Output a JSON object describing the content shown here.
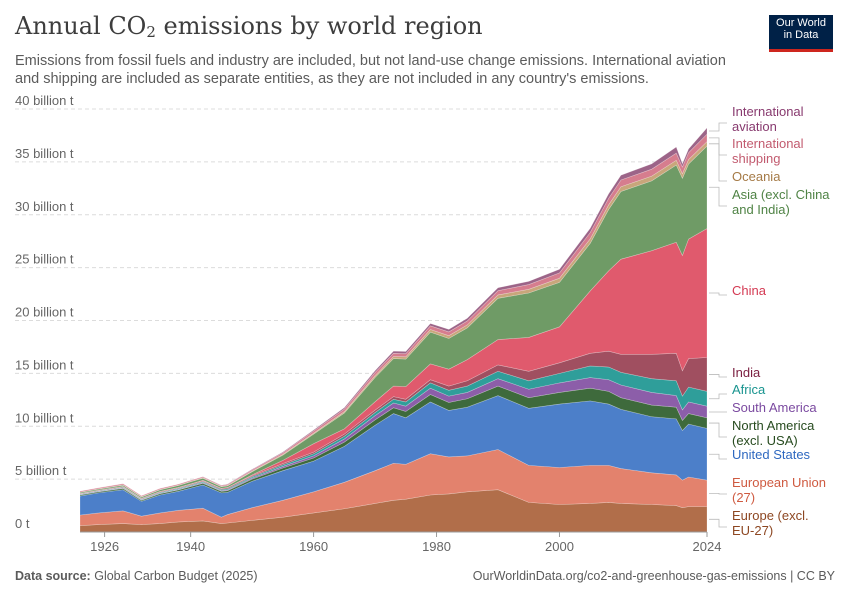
{
  "header": {
    "title_main": "Annual CO",
    "title_sub": "2",
    "title_rest": " emissions by world region",
    "subtitle": "Emissions from fossil fuels and industry are included, but not land-use change emissions. International aviation and shipping are included as separate entities, as they are not included in any country's emissions."
  },
  "logo": {
    "line1": "Our World",
    "line2": "in Data"
  },
  "footer": {
    "source_label": "Data source:",
    "source_value": "Global Carbon Budget (2025)",
    "url": "OurWorldinData.org/co2-and-greenhouse-gas-emissions | CC BY"
  },
  "chart_data": {
    "type": "area",
    "stacked": true,
    "unit": "billion t",
    "x": [
      1922,
      1925,
      1929,
      1932,
      1935,
      1938,
      1940,
      1942,
      1945,
      1946,
      1950,
      1955,
      1960,
      1965,
      1970,
      1973,
      1975,
      1979,
      1982,
      1985,
      1990,
      1995,
      2000,
      2005,
      2008,
      2010,
      2015,
      2019,
      2020,
      2021,
      2024
    ],
    "ylim": [
      0,
      40
    ],
    "y_ticks": [
      0,
      5,
      10,
      15,
      20,
      25,
      30,
      35,
      40
    ],
    "y_tick_labels": [
      "0 t",
      "5 billion t",
      "10 billion t",
      "15 billion t",
      "20 billion t",
      "25 billion t",
      "30 billion t",
      "35 billion t",
      "40 billion t"
    ],
    "x_ticks": [
      1926,
      1940,
      1960,
      1980,
      2000,
      2024
    ],
    "grid": "horizontal",
    "legend": "right-labels",
    "series": [
      {
        "name": "Europe (excl. EU-27)",
        "color": "#b16e4a",
        "values": [
          0.6,
          0.7,
          0.8,
          0.7,
          0.8,
          0.95,
          1.0,
          1.05,
          0.8,
          0.85,
          1.1,
          1.4,
          1.8,
          2.2,
          2.7,
          3.0,
          3.1,
          3.5,
          3.6,
          3.8,
          4.0,
          2.8,
          2.6,
          2.7,
          2.8,
          2.7,
          2.6,
          2.5,
          2.3,
          2.4,
          2.4
        ]
      },
      {
        "name": "European Union (27)",
        "color": "#e3826d",
        "values": [
          1.0,
          1.1,
          1.2,
          0.8,
          1.0,
          1.1,
          1.15,
          1.2,
          0.6,
          0.8,
          1.2,
          1.6,
          2.0,
          2.5,
          3.1,
          3.5,
          3.3,
          3.9,
          3.5,
          3.4,
          3.8,
          3.5,
          3.5,
          3.6,
          3.5,
          3.3,
          3.0,
          2.9,
          2.6,
          2.8,
          2.5
        ]
      },
      {
        "name": "United States",
        "color": "#4c7fc9",
        "values": [
          1.8,
          1.9,
          2.0,
          1.4,
          1.7,
          1.8,
          2.0,
          2.2,
          2.3,
          2.1,
          2.5,
          2.8,
          2.9,
          3.4,
          4.3,
          4.7,
          4.4,
          4.9,
          4.4,
          4.6,
          5.1,
          5.4,
          6.0,
          6.1,
          5.8,
          5.6,
          5.3,
          5.3,
          4.7,
          5.0,
          4.9
        ]
      },
      {
        "name": "North America (excl. USA)",
        "color": "#3e6a3c",
        "values": [
          0.1,
          0.1,
          0.12,
          0.1,
          0.12,
          0.13,
          0.14,
          0.15,
          0.15,
          0.15,
          0.2,
          0.25,
          0.3,
          0.4,
          0.5,
          0.55,
          0.6,
          0.7,
          0.75,
          0.8,
          0.9,
          1.0,
          1.1,
          1.2,
          1.2,
          1.1,
          1.1,
          1.1,
          0.95,
          1.0,
          1.0
        ]
      },
      {
        "name": "South America",
        "color": "#8c5ea9",
        "values": [
          0.03,
          0.04,
          0.05,
          0.05,
          0.05,
          0.06,
          0.06,
          0.07,
          0.07,
          0.08,
          0.1,
          0.15,
          0.2,
          0.3,
          0.4,
          0.45,
          0.5,
          0.6,
          0.6,
          0.6,
          0.7,
          0.8,
          0.9,
          1.0,
          1.1,
          1.2,
          1.2,
          1.1,
          1.0,
          1.1,
          1.1
        ]
      },
      {
        "name": "Africa",
        "color": "#2f9e9a",
        "values": [
          0.05,
          0.05,
          0.06,
          0.06,
          0.07,
          0.08,
          0.08,
          0.09,
          0.09,
          0.1,
          0.12,
          0.15,
          0.2,
          0.25,
          0.3,
          0.35,
          0.4,
          0.5,
          0.55,
          0.6,
          0.7,
          0.8,
          0.9,
          1.1,
          1.2,
          1.2,
          1.3,
          1.4,
          1.3,
          1.4,
          1.4
        ]
      },
      {
        "name": "India",
        "color": "#a04f60",
        "values": [
          0.05,
          0.05,
          0.06,
          0.06,
          0.07,
          0.07,
          0.08,
          0.08,
          0.09,
          0.1,
          0.1,
          0.12,
          0.15,
          0.2,
          0.22,
          0.25,
          0.25,
          0.3,
          0.4,
          0.5,
          0.6,
          0.9,
          1.0,
          1.2,
          1.5,
          1.7,
          2.3,
          2.6,
          2.4,
          2.7,
          3.2
        ]
      },
      {
        "name": "China",
        "color": "#e05a6d",
        "values": [
          0.02,
          0.02,
          0.02,
          0.02,
          0.03,
          0.03,
          0.04,
          0.05,
          0.03,
          0.03,
          0.08,
          0.3,
          0.8,
          0.5,
          0.8,
          1.0,
          1.2,
          1.5,
          1.6,
          2.0,
          2.4,
          3.2,
          3.4,
          5.9,
          7.6,
          9.0,
          9.8,
          10.5,
          10.9,
          11.3,
          12.2
        ]
      },
      {
        "name": "Asia (excl. China and India)",
        "color": "#6f9b66",
        "values": [
          0.1,
          0.1,
          0.12,
          0.12,
          0.15,
          0.18,
          0.2,
          0.2,
          0.15,
          0.15,
          0.3,
          0.5,
          0.9,
          1.5,
          2.3,
          2.6,
          2.6,
          3.0,
          2.9,
          3.0,
          3.9,
          4.2,
          4.2,
          4.5,
          5.8,
          6.4,
          6.6,
          7.3,
          7.3,
          7.1,
          7.8
        ]
      },
      {
        "name": "Oceania",
        "color": "#c9a67b",
        "values": [
          0.02,
          0.02,
          0.03,
          0.03,
          0.03,
          0.03,
          0.04,
          0.04,
          0.04,
          0.05,
          0.06,
          0.08,
          0.1,
          0.13,
          0.17,
          0.2,
          0.22,
          0.25,
          0.27,
          0.28,
          0.32,
          0.35,
          0.4,
          0.42,
          0.44,
          0.45,
          0.45,
          0.45,
          0.43,
          0.42,
          0.42
        ]
      },
      {
        "name": "International shipping",
        "color": "#d67d8e",
        "values": [
          0.1,
          0.1,
          0.11,
          0.1,
          0.1,
          0.1,
          0.1,
          0.1,
          0.08,
          0.1,
          0.12,
          0.15,
          0.2,
          0.25,
          0.3,
          0.3,
          0.3,
          0.35,
          0.35,
          0.38,
          0.4,
          0.45,
          0.5,
          0.6,
          0.62,
          0.64,
          0.66,
          0.68,
          0.64,
          0.65,
          0.7
        ]
      },
      {
        "name": "International aviation",
        "color": "#9c6488",
        "values": [
          0.0,
          0.0,
          0.0,
          0.0,
          0.0,
          0.0,
          0.0,
          0.01,
          0.02,
          0.03,
          0.05,
          0.07,
          0.1,
          0.13,
          0.17,
          0.2,
          0.2,
          0.22,
          0.24,
          0.25,
          0.28,
          0.3,
          0.35,
          0.4,
          0.42,
          0.45,
          0.5,
          0.58,
          0.3,
          0.35,
          0.6
        ]
      }
    ],
    "label_colors": {
      "International aviation": "#883a6f",
      "International shipping": "#c25b6f",
      "Oceania": "#a57a46",
      "Asia (excl. China and India)": "#4f8345",
      "China": "#d43a53",
      "India": "#7c2142",
      "Africa": "#18948f",
      "South America": "#7b4aa0",
      "North America (excl. USA)": "#274b1f",
      "United States": "#2e68c0",
      "European Union (27)": "#cf5a40",
      "Europe (excl. EU-27)": "#8d4722"
    },
    "labels": [
      {
        "series": "International aviation",
        "lines": [
          "International",
          "aviation"
        ]
      },
      {
        "series": "International shipping",
        "lines": [
          "International",
          "shipping"
        ]
      },
      {
        "series": "Oceania",
        "lines": [
          "Oceania"
        ]
      },
      {
        "series": "Asia (excl. China and India)",
        "lines": [
          "Asia (excl. China",
          "and India)"
        ]
      },
      {
        "series": "China",
        "lines": [
          "China"
        ]
      },
      {
        "series": "India",
        "lines": [
          "India"
        ]
      },
      {
        "series": "Africa",
        "lines": [
          "Africa"
        ]
      },
      {
        "series": "South America",
        "lines": [
          "South America"
        ]
      },
      {
        "series": "North America (excl. USA)",
        "lines": [
          "North America",
          "(excl. USA)"
        ]
      },
      {
        "series": "United States",
        "lines": [
          "United States"
        ]
      },
      {
        "series": "European Union (27)",
        "lines": [
          "European Union",
          "(27)"
        ]
      },
      {
        "series": "Europe (excl. EU-27)",
        "lines": [
          "Europe (excl.",
          "EU-27)"
        ]
      }
    ]
  }
}
